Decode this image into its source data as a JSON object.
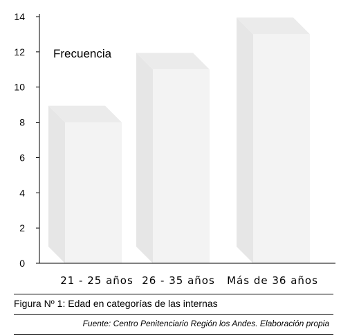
{
  "chart_data": {
    "type": "bar",
    "categories": [
      "21 - 25 años",
      "26 - 35 años",
      "Más de 36 años"
    ],
    "series": [
      {
        "name": "Frecuencia",
        "values": [
          8,
          11,
          13
        ]
      }
    ],
    "ylim": [
      0,
      14
    ],
    "yticks": [
      "0",
      "2",
      "4",
      "6",
      "8",
      "10",
      "12",
      "14"
    ],
    "grid": false,
    "legend": "top-left",
    "style": "3d-column",
    "bar_color": "#f3f3f3",
    "bar_side_color": "#e6e6e6",
    "bar_top_color": "#ebebeb"
  },
  "caption": "Figura Nº 1: Edad en categorías de las internas",
  "source": "Fuente: Centro Penitenciario Región los Andes. Elaboración propia"
}
